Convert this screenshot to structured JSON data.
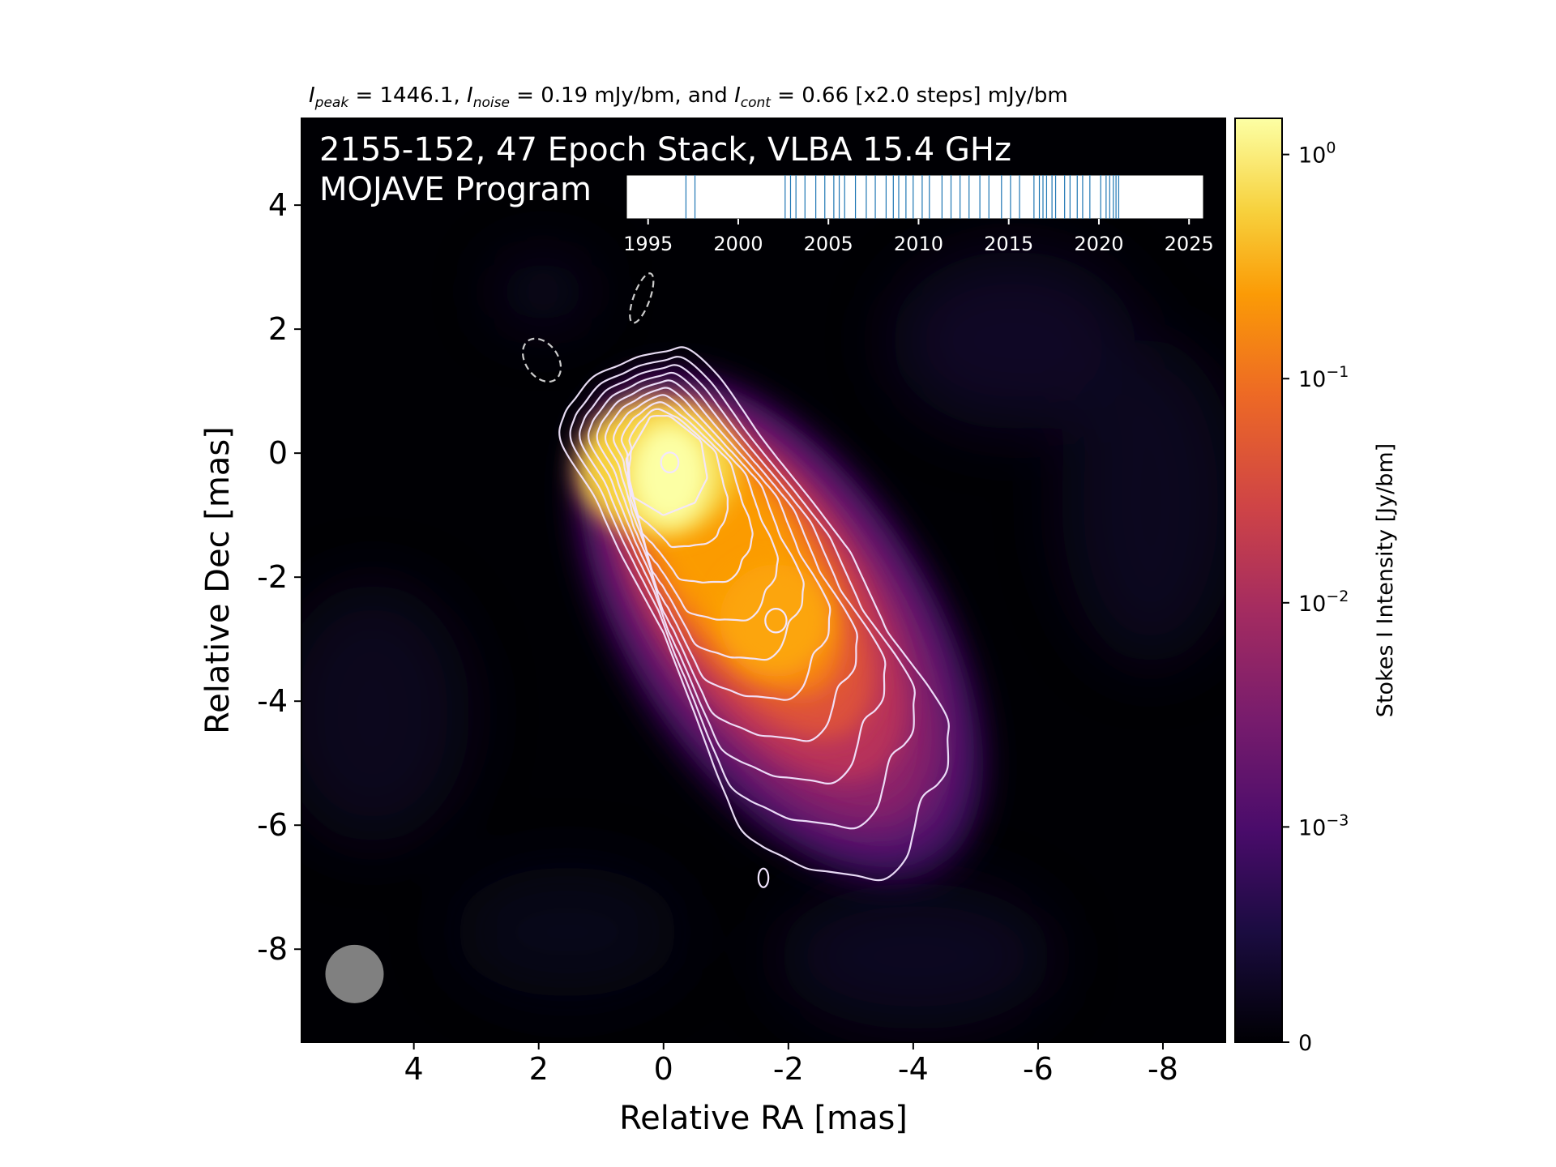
{
  "chart_data": {
    "type": "heatmap",
    "header": {
      "peak_sym": "I",
      "peak_sub": "peak",
      "peak_eq": " = 1446.1, ",
      "noise_sym": "I",
      "noise_sub": "noise",
      "noise_eq": " = 0.19 mJy/bm, and ",
      "cont_sym": "I",
      "cont_sub": "cont",
      "cont_eq": " = 0.66 [x2.0 steps] mJy/bm"
    },
    "title_line1": "2155-152, 47 Epoch Stack, VLBA 15.4 GHz",
    "title_line2": "MOJAVE Program",
    "xlabel": "Relative RA [mas]",
    "ylabel": "Relative Dec [mas]",
    "xlim": [
      5.8,
      -9.0
    ],
    "ylim": [
      -9.5,
      5.4
    ],
    "x_ticks": [
      4,
      2,
      0,
      -2,
      -4,
      -6,
      -8
    ],
    "x_tick_labels": [
      "4",
      "2",
      "0",
      "-2",
      "-4",
      "-6",
      "-8"
    ],
    "y_ticks": [
      4,
      2,
      0,
      -2,
      -4,
      -6,
      -8
    ],
    "y_tick_labels": [
      "4",
      "2",
      "0",
      "-2",
      "-4",
      "-6",
      "-8"
    ],
    "colormap": "inferno",
    "colorbar": {
      "label": "Stokes I Intensity [Jy/bm]",
      "scale": "symlog",
      "ticks": [
        {
          "value": 1.0,
          "base": "10",
          "exp": "0"
        },
        {
          "value": 0.1,
          "base": "10",
          "exp": "−1"
        },
        {
          "value": 0.01,
          "base": "10",
          "exp": "−2"
        },
        {
          "value": 0.001,
          "base": "10",
          "exp": "−3"
        },
        {
          "value": 0,
          "base": "0",
          "exp": ""
        }
      ]
    },
    "components": [
      {
        "ra": -0.1,
        "dec": -0.15,
        "peak_jy": 1.446
      },
      {
        "ra": -1.8,
        "dec": -2.7,
        "peak_jy": 0.12
      }
    ],
    "contour_levels_mjy": [
      0.66,
      1.32,
      2.64,
      5.28,
      10.56,
      21.12,
      42.24,
      84.48,
      168.96,
      337.92,
      675.84,
      1351.68
    ],
    "negative_contour_mjy": -0.66,
    "beam": {
      "ra": 4.95,
      "dec": -8.4
    },
    "epochs": {
      "xlim": [
        1993.8,
        2025.8
      ],
      "ticks": [
        1995,
        2000,
        2005,
        2010,
        2015,
        2020,
        2025
      ],
      "tick_labels": [
        "1995",
        "2000",
        "2005",
        "2010",
        "2015",
        "2020",
        "2025"
      ],
      "years": [
        1997.1,
        1997.6,
        2002.6,
        2002.9,
        2003.2,
        2003.7,
        2004.3,
        2004.8,
        2005.3,
        2005.6,
        2005.9,
        2006.5,
        2007.1,
        2007.6,
        2008.2,
        2008.6,
        2008.9,
        2009.3,
        2009.7,
        2010.2,
        2010.6,
        2011.3,
        2011.8,
        2012.3,
        2012.8,
        2013.4,
        2013.9,
        2014.6,
        2015.1,
        2015.6,
        2016.4,
        2016.7,
        2016.9,
        2017.1,
        2017.4,
        2017.6,
        2018.1,
        2018.4,
        2018.8,
        2019.1,
        2019.5,
        2020.1,
        2020.4,
        2020.6,
        2020.8,
        2020.95,
        2021.1
      ]
    },
    "colors": {
      "contour": "#f2e6ff",
      "epoch_line": "#1f77b4",
      "beam": "#808080",
      "background": "#000004"
    }
  }
}
